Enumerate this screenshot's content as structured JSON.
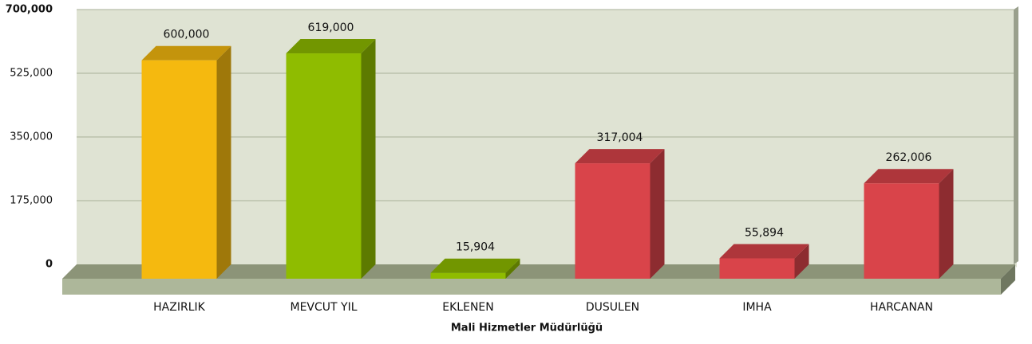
{
  "chart_data": {
    "type": "bar3d",
    "x_label": "Mali Hizmetler Müdürlüğü",
    "categories": [
      "HAZIRLIK",
      "MEVCUT YIL",
      "EKLENEN",
      "DUSULEN",
      "IMHA",
      "HARCANAN"
    ],
    "values": [
      600000,
      619000,
      15904,
      317004,
      55894,
      262006
    ],
    "value_labels": [
      "600,000",
      "619,000",
      "15,904",
      "317,004",
      "55,894",
      "262,006"
    ],
    "colors": [
      "#f5b90f",
      "#8fbc00",
      "#8fbc00",
      "#d9444a",
      "#d9444a",
      "#d9444a"
    ],
    "ylim": [
      0,
      700000
    ],
    "yticks": [
      {
        "value": 0,
        "label": "0"
      },
      {
        "value": 175000,
        "label": "175,000"
      },
      {
        "value": 350000,
        "label": "350,000"
      },
      {
        "value": 525000,
        "label": "525,000"
      },
      {
        "value": 700000,
        "label": "700,000"
      }
    ],
    "grid": true
  }
}
